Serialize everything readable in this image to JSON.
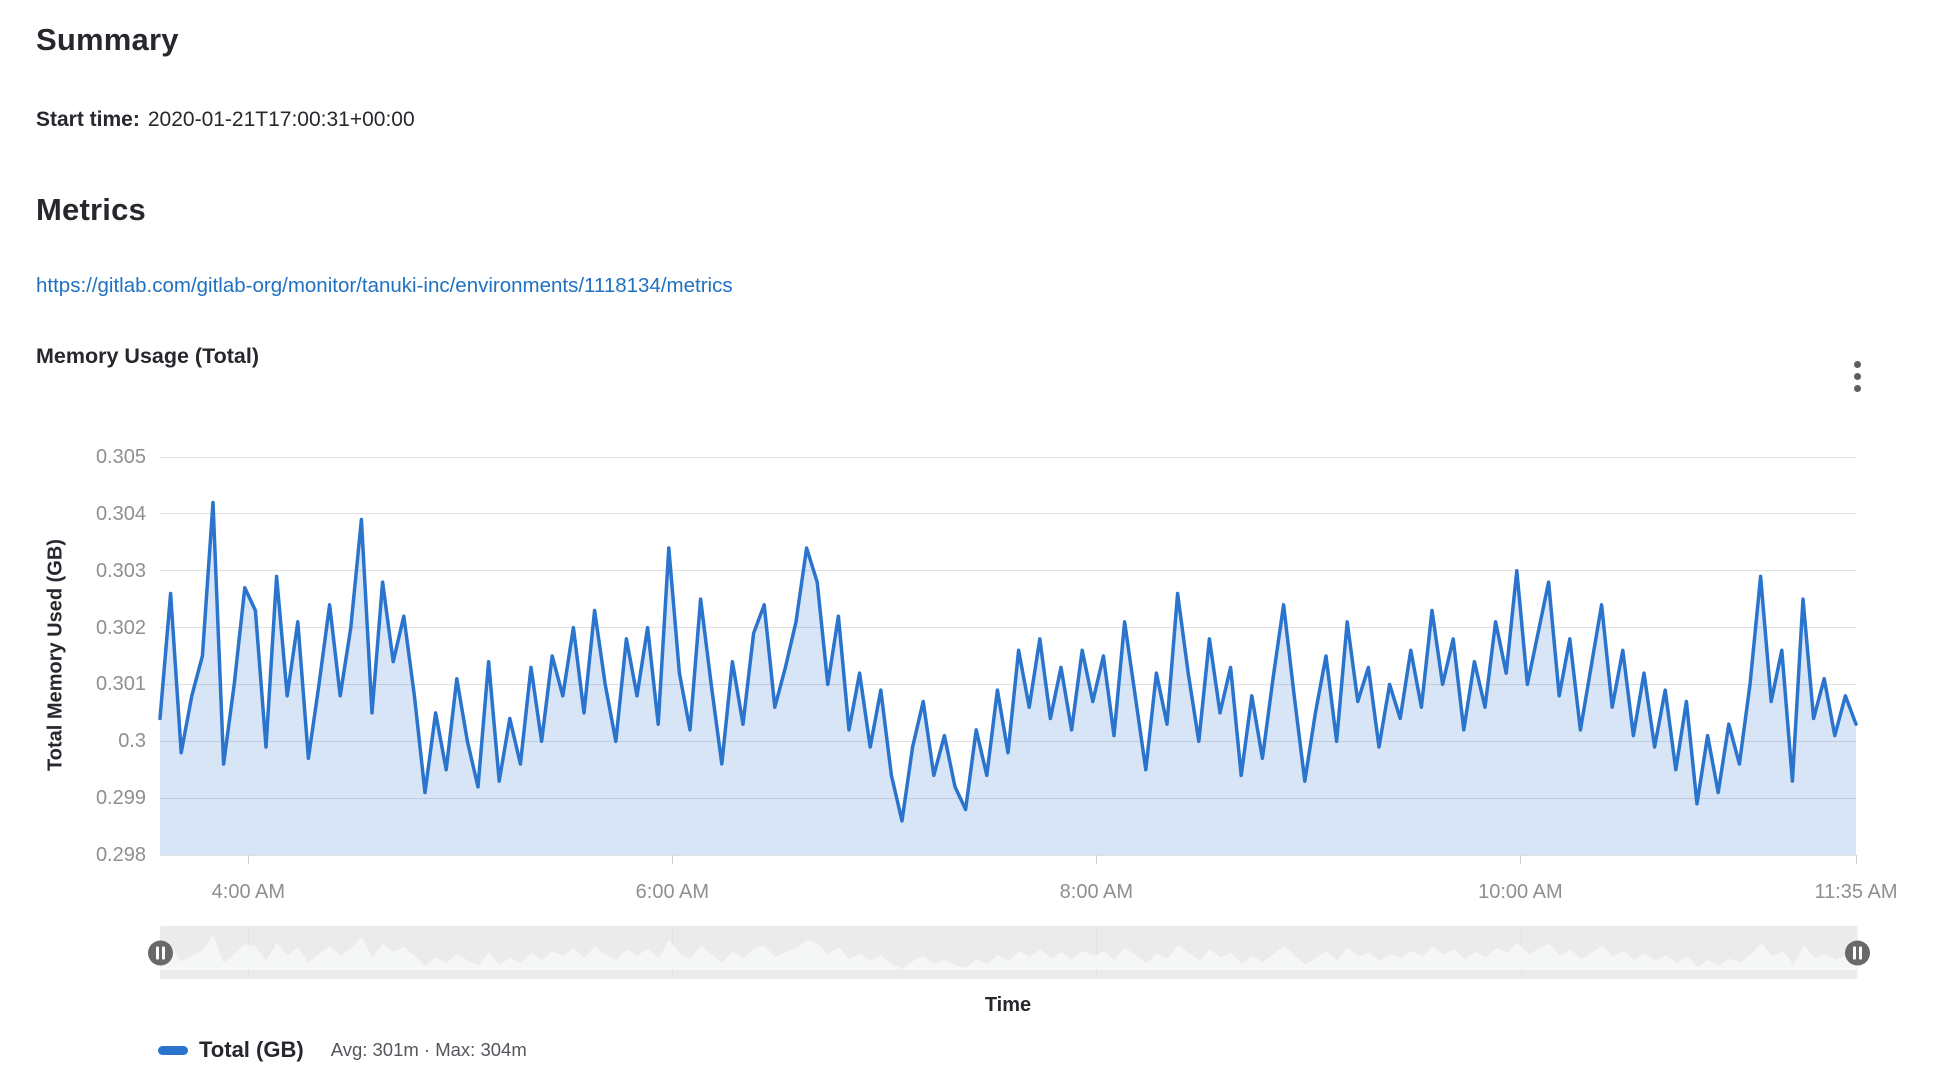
{
  "page": {
    "summary_heading": "Summary",
    "start_time_label": "Start time:",
    "start_time_value": "2020-01-21T17:00:31+00:00",
    "metrics_heading": "Metrics",
    "metrics_link": "https://gitlab.com/gitlab-org/monitor/tanuki-inc/environments/1118134/metrics"
  },
  "icons": {
    "chart_menu": "kebab-vertical-icon",
    "scrubber_handles": "drag-handle-pause-icon"
  },
  "colors": {
    "line": "#2a74cd",
    "area_fill": "rgba(42,116,205,0.19)",
    "gridline": "#e0e0e0",
    "tick_text": "#8f8f8f",
    "link": "#2071c1",
    "scrubber_band": "#ebebeb",
    "scrubber_silhouette": "#f5f6f6",
    "handle": "#696969"
  },
  "chart_data": {
    "type": "area",
    "title": "Memory Usage (Total)",
    "xlabel": "Time",
    "ylabel": "Total Memory Used (GB)",
    "ylim": [
      0.298,
      0.305
    ],
    "grid": true,
    "legend_position": "bottom-left",
    "x_start": "3:35 AM",
    "x_end": "11:35 AM",
    "x_interval_minutes": 3,
    "y_ticks": [
      {
        "label": "0.305",
        "value": 0.305
      },
      {
        "label": "0.304",
        "value": 0.304
      },
      {
        "label": "0.303",
        "value": 0.303
      },
      {
        "label": "0.302",
        "value": 0.302
      },
      {
        "label": "0.301",
        "value": 0.301
      },
      {
        "label": "0.3",
        "value": 0.3
      },
      {
        "label": "0.299",
        "value": 0.299
      },
      {
        "label": "0.298",
        "value": 0.298
      }
    ],
    "x_ticks": [
      {
        "label": "4:00 AM",
        "pos": 0.0521
      },
      {
        "label": "6:00 AM",
        "pos": 0.3021
      },
      {
        "label": "8:00 AM",
        "pos": 0.5521
      },
      {
        "label": "10:00 AM",
        "pos": 0.8021
      },
      {
        "label": "11:35 AM",
        "pos": 1.0
      }
    ],
    "series": [
      {
        "name": "Total (GB)",
        "stats": "Avg: 301m · Max: 304m",
        "avg": 0.301,
        "max": 0.304,
        "color": "#2a74cd",
        "values": [
          0.3004,
          0.3026,
          0.2998,
          0.3008,
          0.3015,
          0.3042,
          0.2996,
          0.301,
          0.3027,
          0.3023,
          0.2999,
          0.3029,
          0.3008,
          0.3021,
          0.2997,
          0.301,
          0.3024,
          0.3008,
          0.302,
          0.3039,
          0.3005,
          0.3028,
          0.3014,
          0.3022,
          0.3008,
          0.2991,
          0.3005,
          0.2995,
          0.3011,
          0.3,
          0.2992,
          0.3014,
          0.2993,
          0.3004,
          0.2996,
          0.3013,
          0.3,
          0.3015,
          0.3008,
          0.302,
          0.3005,
          0.3023,
          0.301,
          0.3,
          0.3018,
          0.3008,
          0.302,
          0.3003,
          0.3034,
          0.3012,
          0.3002,
          0.3025,
          0.301,
          0.2996,
          0.3014,
          0.3003,
          0.3019,
          0.3024,
          0.3006,
          0.3013,
          0.3021,
          0.3034,
          0.3028,
          0.301,
          0.3022,
          0.3002,
          0.3012,
          0.2999,
          0.3009,
          0.2994,
          0.2986,
          0.2999,
          0.3007,
          0.2994,
          0.3001,
          0.2992,
          0.2988,
          0.3002,
          0.2994,
          0.3009,
          0.2998,
          0.3016,
          0.3006,
          0.3018,
          0.3004,
          0.3013,
          0.3002,
          0.3016,
          0.3007,
          0.3015,
          0.3001,
          0.3021,
          0.3008,
          0.2995,
          0.3012,
          0.3003,
          0.3026,
          0.3012,
          0.3,
          0.3018,
          0.3005,
          0.3013,
          0.2994,
          0.3008,
          0.2997,
          0.3011,
          0.3024,
          0.3008,
          0.2993,
          0.3005,
          0.3015,
          0.3,
          0.3021,
          0.3007,
          0.3013,
          0.2999,
          0.301,
          0.3004,
          0.3016,
          0.3006,
          0.3023,
          0.301,
          0.3018,
          0.3002,
          0.3014,
          0.3006,
          0.3021,
          0.3012,
          0.303,
          0.301,
          0.3019,
          0.3028,
          0.3008,
          0.3018,
          0.3002,
          0.3013,
          0.3024,
          0.3006,
          0.3016,
          0.3001,
          0.3012,
          0.2999,
          0.3009,
          0.2995,
          0.3007,
          0.2989,
          0.3001,
          0.2991,
          0.3003,
          0.2996,
          0.301,
          0.3029,
          0.3007,
          0.3016,
          0.2993,
          0.3025,
          0.3004,
          0.3011,
          0.3001,
          0.3008,
          0.3003
        ]
      }
    ]
  }
}
